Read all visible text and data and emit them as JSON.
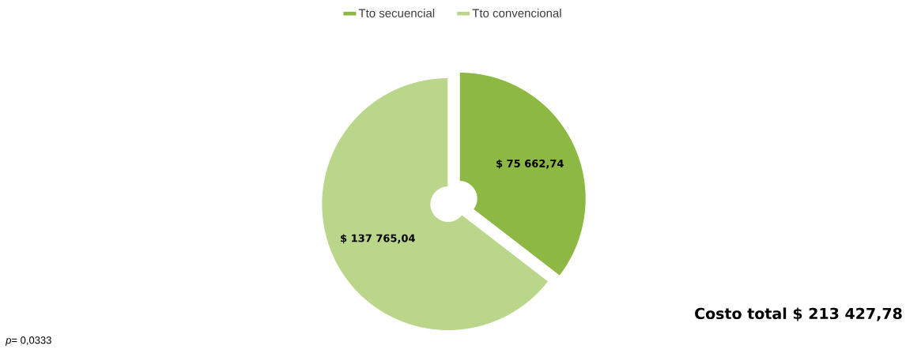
{
  "chart_data": {
    "type": "donut",
    "categories": [
      "Tto secuencial",
      "Tto convencional"
    ],
    "values": [
      75662.74,
      137765.04
    ],
    "colors": [
      "#8db843",
      "#b9d68a"
    ],
    "value_labels": [
      "$ 75 662,74",
      "$ 137 765,04"
    ],
    "legend": "top",
    "annotations": [
      "Costo total  $ 213 427,78",
      "*p*= 0,0333"
    ]
  }
}
